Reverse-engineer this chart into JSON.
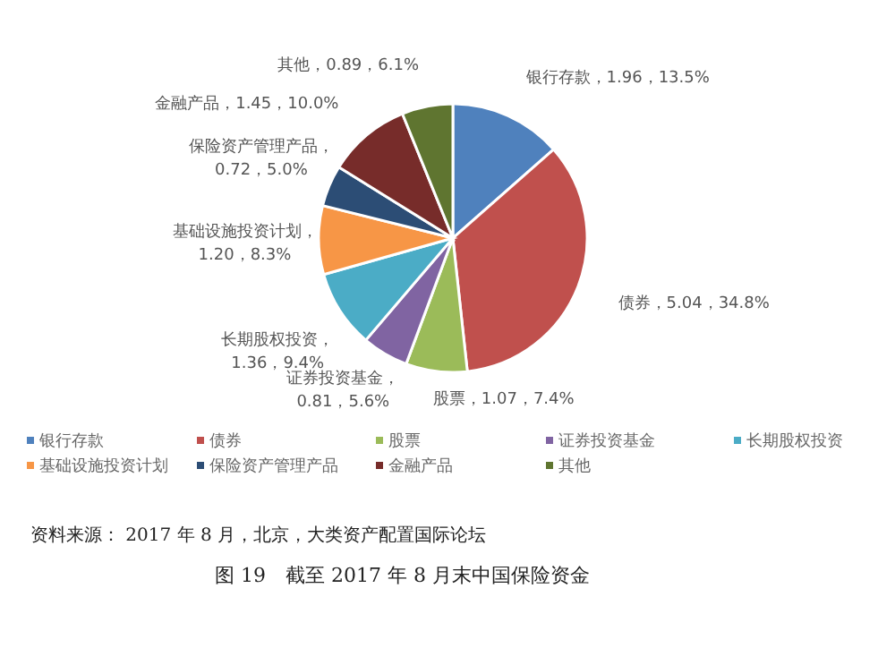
{
  "chart_data": {
    "type": "pie",
    "categories": [
      "银行存款",
      "债券",
      "股票",
      "证券投资基金",
      "长期股权投资",
      "基础设施投资计划",
      "保险资产管理产品",
      "金融产品",
      "其他"
    ],
    "values": [
      1.96,
      5.04,
      1.07,
      0.81,
      1.36,
      1.2,
      0.72,
      1.45,
      0.89
    ],
    "colors": [
      "#4f81bd",
      "#c0504d",
      "#9bbb59",
      "#8064a2",
      "#4bacc6",
      "#f79646",
      "#2c4d75",
      "#772c2a",
      "#5f7530"
    ],
    "value_labels": [
      "银行存款，1.96，13.5%",
      "债券，5.04，34.8%",
      "股票，1.07，7.4%",
      "证券投资基金，\n0.81，5.6%",
      "长期股权投资，\n1.36，9.4%",
      "基础设施投资计划，\n1.20，8.3%",
      "保险资产管理产品，\n0.72，5.0%",
      "金融产品，1.45，10.0%",
      "其他，0.89，6.1%"
    ],
    "legend": "bottom",
    "annotations": [
      "资料来源： 2017 年 8 月，北京，大类资产配置国际论坛",
      "图 19　截至 2017 年 8 月末中国保险资金"
    ]
  }
}
